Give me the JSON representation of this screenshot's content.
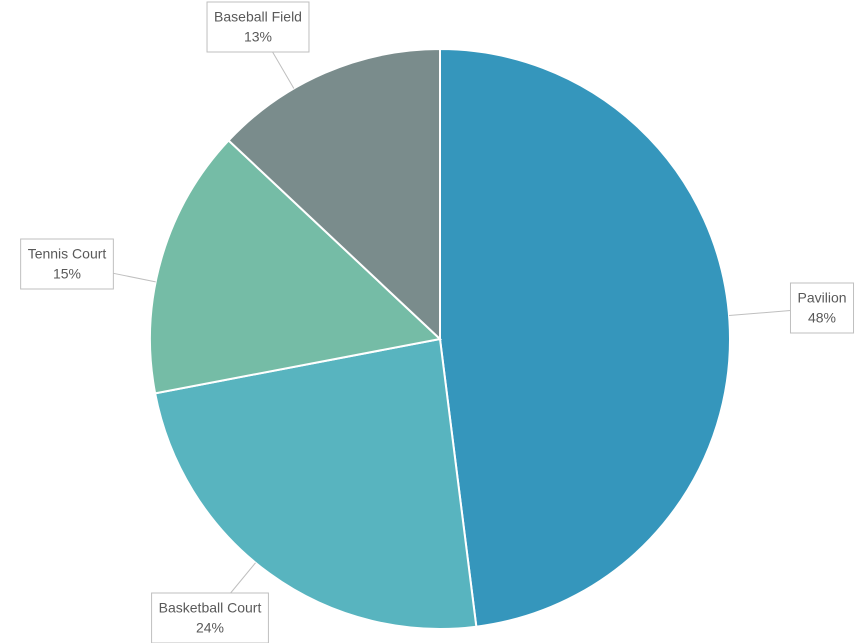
{
  "chart_data": {
    "type": "pie",
    "categories": [
      "Pavilion",
      "Basketball Court",
      "Tennis Court",
      "Baseball Field"
    ],
    "values": [
      48,
      24,
      15,
      13
    ],
    "value_labels": [
      "48%",
      "24%",
      "15%",
      "13%"
    ],
    "colors": [
      "#3596bc",
      "#58b4bf",
      "#75bca6",
      "#7a8c8c"
    ]
  }
}
